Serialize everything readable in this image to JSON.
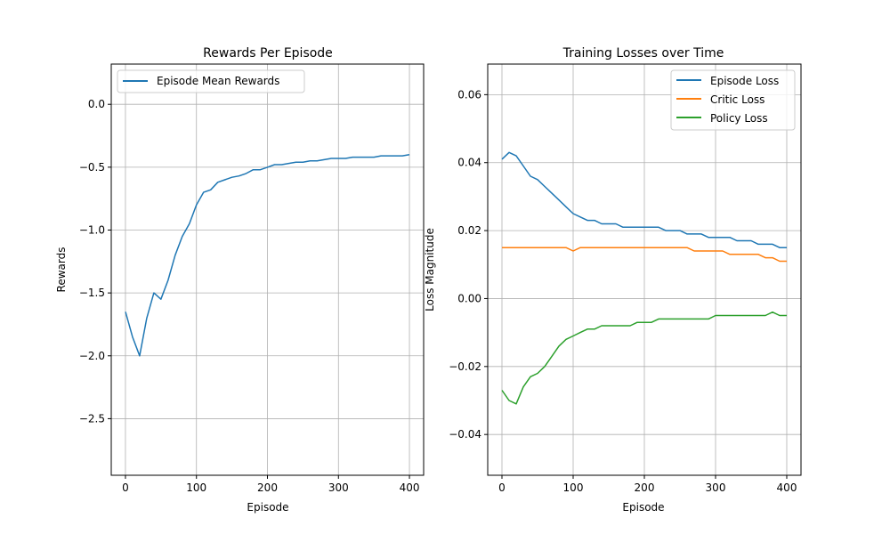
{
  "colors": {
    "blue": "#1f77b4",
    "orange": "#ff7f0e",
    "green": "#2ca02c",
    "grid": "#b0b0b0",
    "axis": "#000000",
    "legend_border": "#cccccc"
  },
  "chart_data": [
    {
      "type": "line",
      "title": "Rewards Per Episode",
      "xlabel": "Episode",
      "ylabel": "Rewards",
      "xlim": [
        -20,
        420
      ],
      "ylim": [
        -2.95,
        0.32
      ],
      "xticks": [
        0,
        100,
        200,
        300,
        400
      ],
      "yticks": [
        -2.5,
        -2.0,
        -1.5,
        -1.0,
        -0.5,
        0.0
      ],
      "ytick_labels": [
        "−2.5",
        "−2.0",
        "−1.5",
        "−1.0",
        "−0.5",
        "0.0"
      ],
      "grid": true,
      "legend": "upper-left",
      "series": [
        {
          "name": "Episode Mean Rewards",
          "color": "#1f77b4",
          "x": [
            0,
            10,
            20,
            30,
            40,
            50,
            60,
            70,
            80,
            90,
            100,
            110,
            120,
            130,
            140,
            150,
            160,
            170,
            180,
            190,
            200,
            210,
            220,
            230,
            240,
            250,
            260,
            270,
            280,
            290,
            300,
            310,
            320,
            330,
            340,
            350,
            360,
            370,
            380,
            390,
            400
          ],
          "y": [
            -1.65,
            -1.85,
            -2.0,
            -1.7,
            -1.5,
            -1.55,
            -1.4,
            -1.2,
            -1.05,
            -0.95,
            -0.8,
            -0.7,
            -0.68,
            -0.62,
            -0.6,
            -0.58,
            -0.57,
            -0.55,
            -0.52,
            -0.52,
            -0.5,
            -0.48,
            -0.48,
            -0.47,
            -0.46,
            -0.46,
            -0.45,
            -0.45,
            -0.44,
            -0.43,
            -0.43,
            -0.43,
            -0.42,
            -0.42,
            -0.42,
            -0.42,
            -0.41,
            -0.41,
            -0.41,
            -0.41,
            -0.4
          ]
        }
      ]
    },
    {
      "type": "line",
      "title": "Training Losses over Time",
      "xlabel": "Episode",
      "ylabel": "Loss Magnitude",
      "xlim": [
        -20,
        420
      ],
      "ylim": [
        -0.052,
        0.069
      ],
      "xticks": [
        0,
        100,
        200,
        300,
        400
      ],
      "yticks": [
        -0.04,
        -0.02,
        0.0,
        0.02,
        0.04,
        0.06
      ],
      "ytick_labels": [
        "−0.04",
        "−0.02",
        "0.00",
        "0.02",
        "0.04",
        "0.06"
      ],
      "grid": true,
      "legend": "upper-right",
      "series": [
        {
          "name": "Episode Loss",
          "color": "#1f77b4",
          "x": [
            0,
            10,
            20,
            30,
            40,
            50,
            60,
            70,
            80,
            90,
            100,
            110,
            120,
            130,
            140,
            150,
            160,
            170,
            180,
            190,
            200,
            210,
            220,
            230,
            240,
            250,
            260,
            270,
            280,
            290,
            300,
            310,
            320,
            330,
            340,
            350,
            360,
            370,
            380,
            390,
            400
          ],
          "y": [
            0.041,
            0.043,
            0.042,
            0.039,
            0.036,
            0.035,
            0.033,
            0.031,
            0.029,
            0.027,
            0.025,
            0.024,
            0.023,
            0.023,
            0.022,
            0.022,
            0.022,
            0.021,
            0.021,
            0.021,
            0.021,
            0.021,
            0.021,
            0.02,
            0.02,
            0.02,
            0.019,
            0.019,
            0.019,
            0.018,
            0.018,
            0.018,
            0.018,
            0.017,
            0.017,
            0.017,
            0.016,
            0.016,
            0.016,
            0.015,
            0.015
          ]
        },
        {
          "name": "Critic Loss",
          "color": "#ff7f0e",
          "x": [
            0,
            10,
            20,
            30,
            40,
            50,
            60,
            70,
            80,
            90,
            100,
            110,
            120,
            130,
            140,
            150,
            160,
            170,
            180,
            190,
            200,
            210,
            220,
            230,
            240,
            250,
            260,
            270,
            280,
            290,
            300,
            310,
            320,
            330,
            340,
            350,
            360,
            370,
            380,
            390,
            400
          ],
          "y": [
            0.015,
            0.015,
            0.015,
            0.015,
            0.015,
            0.015,
            0.015,
            0.015,
            0.015,
            0.015,
            0.014,
            0.015,
            0.015,
            0.015,
            0.015,
            0.015,
            0.015,
            0.015,
            0.015,
            0.015,
            0.015,
            0.015,
            0.015,
            0.015,
            0.015,
            0.015,
            0.015,
            0.014,
            0.014,
            0.014,
            0.014,
            0.014,
            0.013,
            0.013,
            0.013,
            0.013,
            0.013,
            0.012,
            0.012,
            0.011,
            0.011
          ]
        },
        {
          "name": "Policy Loss",
          "color": "#2ca02c",
          "x": [
            0,
            10,
            20,
            30,
            40,
            50,
            60,
            70,
            80,
            90,
            100,
            110,
            120,
            130,
            140,
            150,
            160,
            170,
            180,
            190,
            200,
            210,
            220,
            230,
            240,
            250,
            260,
            270,
            280,
            290,
            300,
            310,
            320,
            330,
            340,
            350,
            360,
            370,
            380,
            390,
            400
          ],
          "y": [
            -0.027,
            -0.03,
            -0.031,
            -0.026,
            -0.023,
            -0.022,
            -0.02,
            -0.017,
            -0.014,
            -0.012,
            -0.011,
            -0.01,
            -0.009,
            -0.009,
            -0.008,
            -0.008,
            -0.008,
            -0.008,
            -0.008,
            -0.007,
            -0.007,
            -0.007,
            -0.006,
            -0.006,
            -0.006,
            -0.006,
            -0.006,
            -0.006,
            -0.006,
            -0.006,
            -0.005,
            -0.005,
            -0.005,
            -0.005,
            -0.005,
            -0.005,
            -0.005,
            -0.005,
            -0.004,
            -0.005,
            -0.005
          ]
        }
      ]
    }
  ]
}
